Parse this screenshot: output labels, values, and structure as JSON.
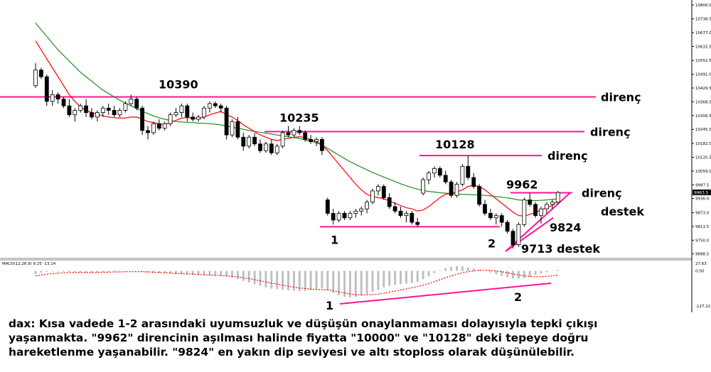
{
  "caption": {
    "line1": "dax: Kısa vadede 1-2 arasındaki uyumsuzluk ve düşüşün onaylanmaması dolayısıyla tepki çıkışı",
    "line2": "yaşanmakta. \"9962\" direncinin aşılması halinde fiyatta \"10000\" ve \"10128\" deki tepeye doğru",
    "line3": "hareketlenme yaşanabilir. \"9824\" en yakın dip seviyesi ve altı stoploss olarak düşünülebilir."
  },
  "colors": {
    "background": "#ffffff",
    "grid": "#dddddd",
    "candle_bull": "#ffffff",
    "candle_bear": "#000000",
    "candle_outline": "#000000",
    "ma_fast": "#ff0000",
    "ma_slow": "#228b22",
    "levels": "#ff1493",
    "macd_hist": "#c0c0c0",
    "macd_signal": "#ff0000",
    "axis_text": "#000000",
    "price_tag_bg": "#000000",
    "price_tag_text": "#ffffff"
  },
  "chart_data": {
    "type": "candlestick",
    "instrument": "dax",
    "y_ticks": [
      "10800.0",
      "10738.5",
      "10677.0",
      "10615.5",
      "10552.5",
      "10491.0",
      "10429.5",
      "10368.0",
      "10306.5",
      "10245.0",
      "10182.0",
      "10120.5",
      "10059.0",
      "9997.5",
      "9936.0",
      "9873.0",
      "9811.5",
      "9750.0",
      "9688.5"
    ],
    "ylim": [
      9675,
      10810
    ],
    "last_price": "9963.5",
    "resistance_lines": [
      {
        "level": 10390,
        "label": "10390",
        "note": "direnç"
      },
      {
        "level": 10235,
        "label": "10235",
        "note": "direnç"
      },
      {
        "level": 10128,
        "label": "10128",
        "note": "direnç"
      },
      {
        "level": 9962,
        "label": "9962",
        "note": "direnç"
      }
    ],
    "support_lines": [
      {
        "level": 9810,
        "label": "1"
      }
    ],
    "support_labels": {
      "point2": "2",
      "level_9824": "9824",
      "destek": "destek",
      "level_9713": "9713 destek"
    },
    "candles": [
      {
        "o": 10440,
        "h": 10540,
        "l": 10430,
        "c": 10510
      },
      {
        "o": 10510,
        "h": 10520,
        "l": 10470,
        "c": 10480
      },
      {
        "o": 10480,
        "h": 10490,
        "l": 10350,
        "c": 10370
      },
      {
        "o": 10370,
        "h": 10420,
        "l": 10350,
        "c": 10400
      },
      {
        "o": 10400,
        "h": 10410,
        "l": 10360,
        "c": 10380
      },
      {
        "o": 10380,
        "h": 10390,
        "l": 10340,
        "c": 10350
      },
      {
        "o": 10350,
        "h": 10380,
        "l": 10300,
        "c": 10310
      },
      {
        "o": 10310,
        "h": 10340,
        "l": 10280,
        "c": 10330
      },
      {
        "o": 10330,
        "h": 10360,
        "l": 10320,
        "c": 10350
      },
      {
        "o": 10350,
        "h": 10380,
        "l": 10300,
        "c": 10320
      },
      {
        "o": 10320,
        "h": 10340,
        "l": 10290,
        "c": 10300
      },
      {
        "o": 10300,
        "h": 10330,
        "l": 10280,
        "c": 10320
      },
      {
        "o": 10320,
        "h": 10350,
        "l": 10300,
        "c": 10340
      },
      {
        "o": 10340,
        "h": 10360,
        "l": 10310,
        "c": 10330
      },
      {
        "o": 10330,
        "h": 10350,
        "l": 10300,
        "c": 10310
      },
      {
        "o": 10310,
        "h": 10340,
        "l": 10300,
        "c": 10330
      },
      {
        "o": 10330,
        "h": 10370,
        "l": 10320,
        "c": 10360
      },
      {
        "o": 10360,
        "h": 10400,
        "l": 10350,
        "c": 10380
      },
      {
        "o": 10380,
        "h": 10390,
        "l": 10330,
        "c": 10340
      },
      {
        "o": 10340,
        "h": 10350,
        "l": 10220,
        "c": 10240
      },
      {
        "o": 10240,
        "h": 10260,
        "l": 10200,
        "c": 10230
      },
      {
        "o": 10230,
        "h": 10280,
        "l": 10220,
        "c": 10270
      },
      {
        "o": 10270,
        "h": 10290,
        "l": 10240,
        "c": 10250
      },
      {
        "o": 10250,
        "h": 10280,
        "l": 10240,
        "c": 10270
      },
      {
        "o": 10270,
        "h": 10320,
        "l": 10260,
        "c": 10310
      },
      {
        "o": 10310,
        "h": 10340,
        "l": 10300,
        "c": 10320
      },
      {
        "o": 10320,
        "h": 10360,
        "l": 10300,
        "c": 10350
      },
      {
        "o": 10350,
        "h": 10360,
        "l": 10280,
        "c": 10300
      },
      {
        "o": 10300,
        "h": 10320,
        "l": 10280,
        "c": 10290
      },
      {
        "o": 10290,
        "h": 10310,
        "l": 10280,
        "c": 10300
      },
      {
        "o": 10300,
        "h": 10350,
        "l": 10290,
        "c": 10340
      },
      {
        "o": 10340,
        "h": 10370,
        "l": 10320,
        "c": 10360
      },
      {
        "o": 10360,
        "h": 10370,
        "l": 10340,
        "c": 10350
      },
      {
        "o": 10350,
        "h": 10360,
        "l": 10320,
        "c": 10340
      },
      {
        "o": 10340,
        "h": 10350,
        "l": 10200,
        "c": 10220
      },
      {
        "o": 10220,
        "h": 10290,
        "l": 10210,
        "c": 10280
      },
      {
        "o": 10280,
        "h": 10300,
        "l": 10200,
        "c": 10210
      },
      {
        "o": 10210,
        "h": 10230,
        "l": 10150,
        "c": 10170
      },
      {
        "o": 10170,
        "h": 10220,
        "l": 10160,
        "c": 10210
      },
      {
        "o": 10210,
        "h": 10230,
        "l": 10170,
        "c": 10180
      },
      {
        "o": 10180,
        "h": 10200,
        "l": 10140,
        "c": 10150
      },
      {
        "o": 10150,
        "h": 10190,
        "l": 10140,
        "c": 10180
      },
      {
        "o": 10180,
        "h": 10200,
        "l": 10130,
        "c": 10140
      },
      {
        "o": 10140,
        "h": 10180,
        "l": 10130,
        "c": 10170
      },
      {
        "o": 10170,
        "h": 10240,
        "l": 10160,
        "c": 10230
      },
      {
        "o": 10230,
        "h": 10260,
        "l": 10210,
        "c": 10220
      },
      {
        "o": 10220,
        "h": 10250,
        "l": 10210,
        "c": 10240
      },
      {
        "o": 10240,
        "h": 10260,
        "l": 10220,
        "c": 10230
      },
      {
        "o": 10230,
        "h": 10240,
        "l": 10190,
        "c": 10200
      },
      {
        "o": 10200,
        "h": 10220,
        "l": 10180,
        "c": 10190
      },
      {
        "o": 10190,
        "h": 10210,
        "l": 10170,
        "c": 10200
      },
      {
        "o": 10200,
        "h": 10210,
        "l": 10130,
        "c": 10150
      },
      {
        "o": 9930,
        "h": 9940,
        "l": 9860,
        "c": 9870
      },
      {
        "o": 9870,
        "h": 9890,
        "l": 9820,
        "c": 9840
      },
      {
        "o": 9840,
        "h": 9880,
        "l": 9830,
        "c": 9870
      },
      {
        "o": 9870,
        "h": 9880,
        "l": 9840,
        "c": 9850
      },
      {
        "o": 9850,
        "h": 9880,
        "l": 9840,
        "c": 9870
      },
      {
        "o": 9870,
        "h": 9890,
        "l": 9850,
        "c": 9880
      },
      {
        "o": 9880,
        "h": 9900,
        "l": 9860,
        "c": 9890
      },
      {
        "o": 9890,
        "h": 9930,
        "l": 9870,
        "c": 9920
      },
      {
        "o": 9920,
        "h": 9980,
        "l": 9910,
        "c": 9970
      },
      {
        "o": 9970,
        "h": 10000,
        "l": 9950,
        "c": 9990
      },
      {
        "o": 9990,
        "h": 10000,
        "l": 9930,
        "c": 9940
      },
      {
        "o": 9940,
        "h": 9960,
        "l": 9890,
        "c": 9900
      },
      {
        "o": 9900,
        "h": 9920,
        "l": 9870,
        "c": 9880
      },
      {
        "o": 9880,
        "h": 9900,
        "l": 9850,
        "c": 9860
      },
      {
        "o": 9860,
        "h": 9880,
        "l": 9830,
        "c": 9870
      },
      {
        "o": 9870,
        "h": 9880,
        "l": 9820,
        "c": 9830
      },
      {
        "o": 9830,
        "h": 9850,
        "l": 9810,
        "c": 9820
      },
      {
        "o": 9960,
        "h": 10030,
        "l": 9950,
        "c": 10020
      },
      {
        "o": 10020,
        "h": 10060,
        "l": 10000,
        "c": 10050
      },
      {
        "o": 10050,
        "h": 10080,
        "l": 10030,
        "c": 10070
      },
      {
        "o": 10070,
        "h": 10080,
        "l": 10030,
        "c": 10040
      },
      {
        "o": 10040,
        "h": 10060,
        "l": 10000,
        "c": 10010
      },
      {
        "o": 10010,
        "h": 10020,
        "l": 9940,
        "c": 9950
      },
      {
        "o": 9950,
        "h": 10010,
        "l": 9940,
        "c": 10000
      },
      {
        "o": 10000,
        "h": 10090,
        "l": 9990,
        "c": 10080
      },
      {
        "o": 10080,
        "h": 10128,
        "l": 10020,
        "c": 10030
      },
      {
        "o": 10030,
        "h": 10050,
        "l": 9980,
        "c": 9990
      },
      {
        "o": 9990,
        "h": 10000,
        "l": 9900,
        "c": 9910
      },
      {
        "o": 9910,
        "h": 9930,
        "l": 9860,
        "c": 9870
      },
      {
        "o": 9870,
        "h": 9890,
        "l": 9840,
        "c": 9850
      },
      {
        "o": 9850,
        "h": 9870,
        "l": 9820,
        "c": 9860
      },
      {
        "o": 9860,
        "h": 9870,
        "l": 9810,
        "c": 9830
      },
      {
        "o": 9830,
        "h": 9840,
        "l": 9780,
        "c": 9790
      },
      {
        "o": 9790,
        "h": 9800,
        "l": 9713,
        "c": 9730
      },
      {
        "o": 9730,
        "h": 9830,
        "l": 9720,
        "c": 9820
      },
      {
        "o": 9820,
        "h": 9940,
        "l": 9810,
        "c": 9930
      },
      {
        "o": 9930,
        "h": 9960,
        "l": 9900,
        "c": 9910
      },
      {
        "o": 9910,
        "h": 9920,
        "l": 9850,
        "c": 9860
      },
      {
        "o": 9860,
        "h": 9900,
        "l": 9824,
        "c": 9890
      },
      {
        "o": 9890,
        "h": 9920,
        "l": 9870,
        "c": 9910
      },
      {
        "o": 9910,
        "h": 9930,
        "l": 9890,
        "c": 9920
      },
      {
        "o": 9920,
        "h": 9970,
        "l": 9910,
        "c": 9963
      }
    ],
    "ma_fast": [
      10640,
      10600,
      10560,
      10520,
      10480,
      10440,
      10400,
      10370,
      10345,
      10330,
      10320,
      10312,
      10305,
      10300,
      10297,
      10295,
      10296,
      10300,
      10300,
      10290,
      10280,
      10275,
      10270,
      10268,
      10275,
      10285,
      10295,
      10298,
      10295,
      10293,
      10300,
      10310,
      10318,
      10325,
      10310,
      10300,
      10285,
      10265,
      10250,
      10235,
      10220,
      10210,
      10200,
      10195,
      10200,
      10205,
      10210,
      10212,
      10208,
      10200,
      10190,
      10175,
      10150,
      10120,
      10090,
      10060,
      10030,
      10000,
      9975,
      9955,
      9945,
      9940,
      9935,
      9925,
      9915,
      9905,
      9895,
      9890,
      9880,
      9885,
      9900,
      9920,
      9940,
      9955,
      9960,
      9965,
      9975,
      9990,
      9995,
      9990,
      9975,
      9955,
      9935,
      9915,
      9895,
      9875,
      9860,
      9858,
      9865,
      9875,
      9885,
      9895,
      9905,
      9925
    ],
    "ma_slow": [
      10720,
      10690,
      10660,
      10630,
      10600,
      10575,
      10550,
      10525,
      10500,
      10480,
      10460,
      10440,
      10420,
      10405,
      10390,
      10375,
      10362,
      10350,
      10338,
      10326,
      10315,
      10305,
      10297,
      10290,
      10285,
      10280,
      10278,
      10276,
      10275,
      10273,
      10272,
      10270,
      10268,
      10265,
      10260,
      10255,
      10250,
      10245,
      10240,
      10236,
      10232,
      10228,
      10224,
      10220,
      10216,
      10212,
      10208,
      10204,
      10198,
      10192,
      10185,
      10175,
      10160,
      10145,
      10130,
      10115,
      10100,
      10088,
      10076,
      10064,
      10052,
      10042,
      10032,
      10022,
      10012,
      10002,
      9993,
      9985,
      9978,
      9972,
      9968,
      9965,
      9962,
      9960,
      9958,
      9956,
      9955,
      9954,
      9953,
      9952,
      9950,
      9948,
      9945,
      9942,
      9939,
      9935,
      9930,
      9928,
      9927,
      9927,
      9928,
      9930,
      9932,
      9935
    ],
    "macd": {
      "label": "MACD(12,26,9) 9.25 -13.14",
      "scale_labels": [
        "27.63",
        "0.00",
        "-127.22"
      ],
      "ylim": [
        -140,
        40
      ],
      "divergence_points": [
        "1",
        "2"
      ],
      "histogram": [
        -12,
        -6,
        -3,
        -2,
        -2,
        -3,
        -4,
        -5,
        -6,
        -7,
        -7,
        -6,
        -5,
        -4,
        -3,
        -2,
        -1,
        0,
        -1,
        -3,
        -5,
        -7,
        -8,
        -9,
        -10,
        -11,
        -12,
        -13,
        -14,
        -15,
        -16,
        -17,
        -18,
        -18,
        -20,
        -24,
        -30,
        -36,
        -42,
        -48,
        -54,
        -60,
        -64,
        -66,
        -68,
        -70,
        -72,
        -73,
        -72,
        -70,
        -66,
        -62,
        -70,
        -80,
        -88,
        -94,
        -96,
        -94,
        -90,
        -84,
        -76,
        -68,
        -60,
        -54,
        -50,
        -48,
        -46,
        -44,
        -40,
        -30,
        -20,
        -8,
        2,
        10,
        15,
        17,
        16,
        13,
        9,
        5,
        0,
        -6,
        -12,
        -18,
        -23,
        -27,
        -28,
        -26,
        -21,
        -15,
        -10,
        -5,
        -1,
        3
      ],
      "signal": [
        -18,
        -15,
        -12,
        -10,
        -8,
        -7,
        -6,
        -6,
        -6,
        -6,
        -6,
        -6,
        -5,
        -5,
        -4,
        -4,
        -3,
        -3,
        -3,
        -3,
        -4,
        -5,
        -6,
        -7,
        -8,
        -9,
        -10,
        -11,
        -12,
        -13,
        -14,
        -15,
        -16,
        -17,
        -18,
        -20,
        -22,
        -25,
        -28,
        -32,
        -36,
        -40,
        -44,
        -48,
        -52,
        -56,
        -59,
        -62,
        -64,
        -66,
        -67,
        -68,
        -69,
        -72,
        -76,
        -80,
        -84,
        -86,
        -87,
        -87,
        -86,
        -84,
        -81,
        -77,
        -73,
        -69,
        -65,
        -61,
        -57,
        -52,
        -46,
        -39,
        -32,
        -25,
        -18,
        -12,
        -7,
        -3,
        0,
        2,
        3,
        2,
        0,
        -3,
        -7,
        -11,
        -15,
        -18,
        -20,
        -21,
        -21,
        -20,
        -18,
        -15
      ]
    }
  }
}
